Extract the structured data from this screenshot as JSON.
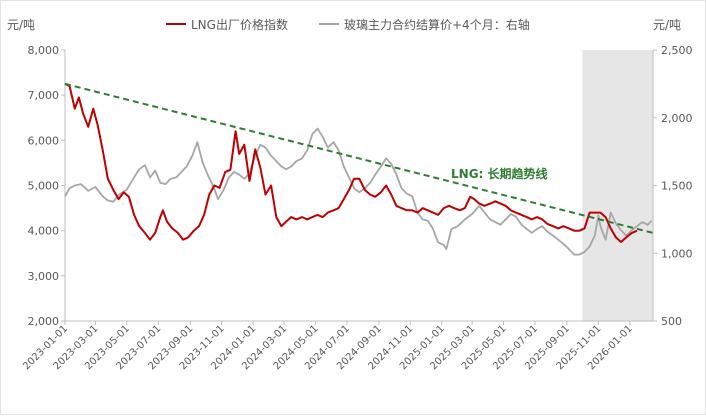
{
  "chart_data": {
    "type": "line",
    "legend": {
      "placement": "top-center",
      "items": [
        {
          "name": "LNG出厂价格指数",
          "color": "#c00000"
        },
        {
          "name": "玻璃主力合约结算价+4个月：右轴",
          "color": "#a6a6a6"
        }
      ]
    },
    "y_left": {
      "unit_label": "元/吨",
      "min": 2000,
      "max": 8000,
      "ticks": [
        "2,000",
        "3,000",
        "4,000",
        "5,000",
        "6,000",
        "7,000",
        "8,000"
      ]
    },
    "y_right": {
      "unit_label": "元/吨",
      "min": 500,
      "max": 2500,
      "ticks": [
        "500",
        "1,000",
        "1,500",
        "2,000",
        "2,500"
      ]
    },
    "x_axis": {
      "start": "2023-01-01",
      "end": "2026-02-15",
      "ticks": [
        "2023-01-01",
        "2023-03-01",
        "2023-05-01",
        "2023-07-01",
        "2023-09-01",
        "2023-11-01",
        "2024-01-01",
        "2024-03-01",
        "2024-05-01",
        "2024-07-01",
        "2024-09-01",
        "2024-11-01",
        "2025-01-01",
        "2025-03-01",
        "2025-05-01",
        "2025-07-01",
        "2025-09-01",
        "2025-11-01",
        "2026-01-01"
      ]
    },
    "forecast_shading": {
      "from": "2025-10-01",
      "to": "2026-02-15",
      "color": "#e6e6e6"
    },
    "trendline": {
      "label": "LNG: 长期趋势线",
      "color": "#2e7d32",
      "from": [
        "2023-01-01",
        7250
      ],
      "to": [
        "2026-02-15",
        3950
      ]
    },
    "series": [
      {
        "name": "LNG出厂价格指数",
        "axis": "left",
        "color": "#c00000",
        "points": [
          [
            "2023-01-01",
            7250
          ],
          [
            "2023-01-10",
            7200
          ],
          [
            "2023-01-20",
            6700
          ],
          [
            "2023-01-28",
            6950
          ],
          [
            "2023-02-05",
            6600
          ],
          [
            "2023-02-15",
            6300
          ],
          [
            "2023-02-25",
            6700
          ],
          [
            "2023-03-05",
            6350
          ],
          [
            "2023-03-15",
            5800
          ],
          [
            "2023-03-25",
            5150
          ],
          [
            "2023-04-05",
            4900
          ],
          [
            "2023-04-15",
            4700
          ],
          [
            "2023-04-25",
            4850
          ],
          [
            "2023-05-05",
            4750
          ],
          [
            "2023-05-15",
            4350
          ],
          [
            "2023-05-25",
            4100
          ],
          [
            "2023-06-05",
            3950
          ],
          [
            "2023-06-15",
            3800
          ],
          [
            "2023-06-25",
            3950
          ],
          [
            "2023-07-05",
            4300
          ],
          [
            "2023-07-10",
            4450
          ],
          [
            "2023-07-18",
            4200
          ],
          [
            "2023-07-28",
            4050
          ],
          [
            "2023-08-08",
            3950
          ],
          [
            "2023-08-18",
            3800
          ],
          [
            "2023-08-28",
            3850
          ],
          [
            "2023-09-08",
            4000
          ],
          [
            "2023-09-18",
            4100
          ],
          [
            "2023-09-28",
            4350
          ],
          [
            "2023-10-08",
            4800
          ],
          [
            "2023-10-18",
            5000
          ],
          [
            "2023-10-28",
            4950
          ],
          [
            "2023-11-08",
            5300
          ],
          [
            "2023-11-18",
            5350
          ],
          [
            "2023-11-28",
            6200
          ],
          [
            "2023-12-05",
            5700
          ],
          [
            "2023-12-15",
            5900
          ],
          [
            "2023-12-25",
            5100
          ],
          [
            "2024-01-05",
            5800
          ],
          [
            "2024-01-15",
            5400
          ],
          [
            "2024-01-25",
            4800
          ],
          [
            "2024-02-05",
            5000
          ],
          [
            "2024-02-15",
            4300
          ],
          [
            "2024-02-25",
            4100
          ],
          [
            "2024-03-05",
            4200
          ],
          [
            "2024-03-15",
            4300
          ],
          [
            "2024-03-25",
            4250
          ],
          [
            "2024-04-05",
            4300
          ],
          [
            "2024-04-15",
            4250
          ],
          [
            "2024-04-25",
            4300
          ],
          [
            "2024-05-05",
            4350
          ],
          [
            "2024-05-15",
            4300
          ],
          [
            "2024-05-25",
            4400
          ],
          [
            "2024-06-05",
            4450
          ],
          [
            "2024-06-15",
            4500
          ],
          [
            "2024-06-25",
            4700
          ],
          [
            "2024-07-05",
            4900
          ],
          [
            "2024-07-15",
            5150
          ],
          [
            "2024-07-25",
            5150
          ],
          [
            "2024-08-05",
            4900
          ],
          [
            "2024-08-15",
            4800
          ],
          [
            "2024-08-25",
            4750
          ],
          [
            "2024-09-05",
            4850
          ],
          [
            "2024-09-15",
            5000
          ],
          [
            "2024-09-25",
            4800
          ],
          [
            "2024-10-05",
            4550
          ],
          [
            "2024-10-15",
            4500
          ],
          [
            "2024-10-25",
            4450
          ],
          [
            "2024-11-05",
            4450
          ],
          [
            "2024-11-15",
            4400
          ],
          [
            "2024-11-25",
            4500
          ],
          [
            "2024-12-05",
            4450
          ],
          [
            "2024-12-15",
            4400
          ],
          [
            "2024-12-25",
            4350
          ],
          [
            "2025-01-05",
            4500
          ],
          [
            "2025-01-15",
            4550
          ],
          [
            "2025-01-25",
            4500
          ],
          [
            "2025-02-05",
            4450
          ],
          [
            "2025-02-15",
            4500
          ],
          [
            "2025-02-25",
            4750
          ],
          [
            "2025-03-05",
            4700
          ],
          [
            "2025-03-15",
            4600
          ],
          [
            "2025-03-25",
            4550
          ],
          [
            "2025-04-05",
            4600
          ],
          [
            "2025-04-15",
            4650
          ],
          [
            "2025-04-25",
            4600
          ],
          [
            "2025-05-05",
            4550
          ],
          [
            "2025-05-15",
            4450
          ],
          [
            "2025-05-25",
            4400
          ],
          [
            "2025-06-05",
            4350
          ],
          [
            "2025-06-15",
            4300
          ],
          [
            "2025-06-25",
            4250
          ],
          [
            "2025-07-05",
            4300
          ],
          [
            "2025-07-15",
            4250
          ],
          [
            "2025-07-25",
            4150
          ],
          [
            "2025-08-05",
            4100
          ],
          [
            "2025-08-15",
            4050
          ],
          [
            "2025-08-25",
            4100
          ],
          [
            "2025-09-05",
            4050
          ],
          [
            "2025-09-15",
            4000
          ],
          [
            "2025-09-25",
            4000
          ],
          [
            "2025-10-05",
            4050
          ],
          [
            "2025-10-15",
            4400
          ],
          [
            "2025-10-25",
            4400
          ],
          [
            "2025-11-05",
            4400
          ],
          [
            "2025-11-15",
            4300
          ],
          [
            "2025-11-25",
            4050
          ],
          [
            "2025-12-05",
            3850
          ],
          [
            "2025-12-15",
            3750
          ],
          [
            "2025-12-25",
            3850
          ],
          [
            "2026-01-05",
            3950
          ],
          [
            "2026-01-15",
            4000
          ]
        ]
      },
      {
        "name": "玻璃主力合约结算价+4个月：右轴",
        "axis": "right",
        "color": "#a6a6a6",
        "points": [
          [
            "2023-01-01",
            1420
          ],
          [
            "2023-01-10",
            1480
          ],
          [
            "2023-01-20",
            1500
          ],
          [
            "2023-02-01",
            1510
          ],
          [
            "2023-02-15",
            1460
          ],
          [
            "2023-03-01",
            1490
          ],
          [
            "2023-03-15",
            1420
          ],
          [
            "2023-03-25",
            1390
          ],
          [
            "2023-04-05",
            1380
          ],
          [
            "2023-04-15",
            1430
          ],
          [
            "2023-05-01",
            1470
          ],
          [
            "2023-05-15",
            1560
          ],
          [
            "2023-05-25",
            1620
          ],
          [
            "2023-06-05",
            1650
          ],
          [
            "2023-06-15",
            1560
          ],
          [
            "2023-06-25",
            1610
          ],
          [
            "2023-07-05",
            1520
          ],
          [
            "2023-07-15",
            1510
          ],
          [
            "2023-07-25",
            1550
          ],
          [
            "2023-08-05",
            1560
          ],
          [
            "2023-08-15",
            1600
          ],
          [
            "2023-08-25",
            1640
          ],
          [
            "2023-09-05",
            1720
          ],
          [
            "2023-09-15",
            1820
          ],
          [
            "2023-09-25",
            1670
          ],
          [
            "2023-10-05",
            1580
          ],
          [
            "2023-10-15",
            1500
          ],
          [
            "2023-10-25",
            1400
          ],
          [
            "2023-11-05",
            1470
          ],
          [
            "2023-11-15",
            1560
          ],
          [
            "2023-11-25",
            1600
          ],
          [
            "2023-12-05",
            1580
          ],
          [
            "2023-12-15",
            1550
          ],
          [
            "2023-12-25",
            1590
          ],
          [
            "2024-01-05",
            1720
          ],
          [
            "2024-01-15",
            1800
          ],
          [
            "2024-01-25",
            1780
          ],
          [
            "2024-02-05",
            1720
          ],
          [
            "2024-02-15",
            1680
          ],
          [
            "2024-02-25",
            1640
          ],
          [
            "2024-03-05",
            1620
          ],
          [
            "2024-03-15",
            1640
          ],
          [
            "2024-03-25",
            1680
          ],
          [
            "2024-04-05",
            1700
          ],
          [
            "2024-04-15",
            1760
          ],
          [
            "2024-04-25",
            1880
          ],
          [
            "2024-05-05",
            1920
          ],
          [
            "2024-05-15",
            1860
          ],
          [
            "2024-05-25",
            1780
          ],
          [
            "2024-06-05",
            1820
          ],
          [
            "2024-06-15",
            1760
          ],
          [
            "2024-06-25",
            1640
          ],
          [
            "2024-07-05",
            1560
          ],
          [
            "2024-07-15",
            1480
          ],
          [
            "2024-07-25",
            1450
          ],
          [
            "2024-08-05",
            1480
          ],
          [
            "2024-08-15",
            1520
          ],
          [
            "2024-08-25",
            1580
          ],
          [
            "2024-09-05",
            1640
          ],
          [
            "2024-09-15",
            1700
          ],
          [
            "2024-09-25",
            1660
          ],
          [
            "2024-10-05",
            1580
          ],
          [
            "2024-10-15",
            1480
          ],
          [
            "2024-10-25",
            1440
          ],
          [
            "2024-11-05",
            1420
          ],
          [
            "2024-11-15",
            1300
          ],
          [
            "2024-11-25",
            1250
          ],
          [
            "2024-12-05",
            1240
          ],
          [
            "2024-12-15",
            1180
          ],
          [
            "2024-12-25",
            1080
          ],
          [
            "2025-01-05",
            1060
          ],
          [
            "2025-01-10",
            1030
          ],
          [
            "2025-01-20",
            1180
          ],
          [
            "2025-02-01",
            1200
          ],
          [
            "2025-02-15",
            1250
          ],
          [
            "2025-03-01",
            1290
          ],
          [
            "2025-03-15",
            1350
          ],
          [
            "2025-03-25",
            1300
          ],
          [
            "2025-04-05",
            1250
          ],
          [
            "2025-04-15",
            1230
          ],
          [
            "2025-04-25",
            1210
          ],
          [
            "2025-05-05",
            1250
          ],
          [
            "2025-05-15",
            1290
          ],
          [
            "2025-05-25",
            1270
          ],
          [
            "2025-06-05",
            1210
          ],
          [
            "2025-06-15",
            1180
          ],
          [
            "2025-06-25",
            1150
          ],
          [
            "2025-07-05",
            1180
          ],
          [
            "2025-07-15",
            1200
          ],
          [
            "2025-07-25",
            1160
          ],
          [
            "2025-08-05",
            1130
          ],
          [
            "2025-08-15",
            1100
          ],
          [
            "2025-08-25",
            1070
          ],
          [
            "2025-09-05",
            1030
          ],
          [
            "2025-09-15",
            990
          ],
          [
            "2025-09-25",
            990
          ],
          [
            "2025-10-05",
            1010
          ],
          [
            "2025-10-15",
            1050
          ],
          [
            "2025-10-25",
            1130
          ],
          [
            "2025-11-01",
            1280
          ],
          [
            "2025-11-05",
            1200
          ],
          [
            "2025-11-10",
            1150
          ],
          [
            "2025-11-15",
            1100
          ],
          [
            "2025-11-20",
            1200
          ],
          [
            "2025-11-25",
            1300
          ],
          [
            "2025-12-05",
            1220
          ],
          [
            "2025-12-15",
            1170
          ],
          [
            "2025-12-25",
            1130
          ],
          [
            "2026-01-05",
            1170
          ],
          [
            "2026-01-15",
            1200
          ],
          [
            "2026-01-25",
            1230
          ],
          [
            "2026-02-05",
            1210
          ],
          [
            "2026-02-12",
            1240
          ]
        ]
      }
    ]
  }
}
